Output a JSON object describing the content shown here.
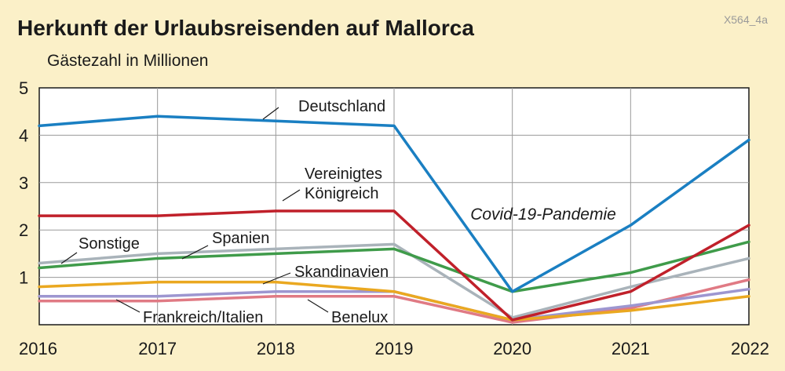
{
  "chart_data": {
    "type": "line",
    "title": "Herkunft der Urlaubsreisenden auf Mallorca",
    "code": "X564_4a",
    "ylabel": "Gästezahl in Millionen",
    "x": [
      "2016",
      "2017",
      "2018",
      "2019",
      "2020",
      "2021",
      "2022"
    ],
    "yticks": [
      "1",
      "2",
      "3",
      "4",
      "5"
    ],
    "ylim": [
      0,
      5
    ],
    "grid": true,
    "annotation": "Covid-19-Pandemie",
    "series": [
      {
        "name": "Deutschland",
        "color": "#1a7fc2",
        "values": [
          4.2,
          4.4,
          4.3,
          4.2,
          0.7,
          2.1,
          3.9
        ]
      },
      {
        "name": "Vereinigtes Königreich",
        "name_lines": [
          "Vereinigtes",
          "Königreich"
        ],
        "color": "#c0202a",
        "values": [
          2.3,
          2.3,
          2.4,
          2.4,
          0.1,
          0.7,
          2.1
        ]
      },
      {
        "name": "Sonstige",
        "color": "#a9b3ba",
        "values": [
          1.3,
          1.5,
          1.6,
          1.7,
          0.15,
          0.8,
          1.4
        ]
      },
      {
        "name": "Spanien",
        "color": "#3f9b4a",
        "values": [
          1.2,
          1.4,
          1.5,
          1.6,
          0.7,
          1.1,
          1.75
        ]
      },
      {
        "name": "Skandinavien",
        "color": "#eaa820",
        "values": [
          0.8,
          0.9,
          0.9,
          0.7,
          0.1,
          0.3,
          0.6
        ]
      },
      {
        "name": "Frankreich/Italien",
        "color": "#9d96d0",
        "values": [
          0.6,
          0.6,
          0.7,
          0.7,
          0.1,
          0.4,
          0.75
        ]
      },
      {
        "name": "Benelux",
        "color": "#e07a84",
        "values": [
          0.5,
          0.5,
          0.6,
          0.6,
          0.05,
          0.35,
          0.95
        ]
      }
    ]
  }
}
